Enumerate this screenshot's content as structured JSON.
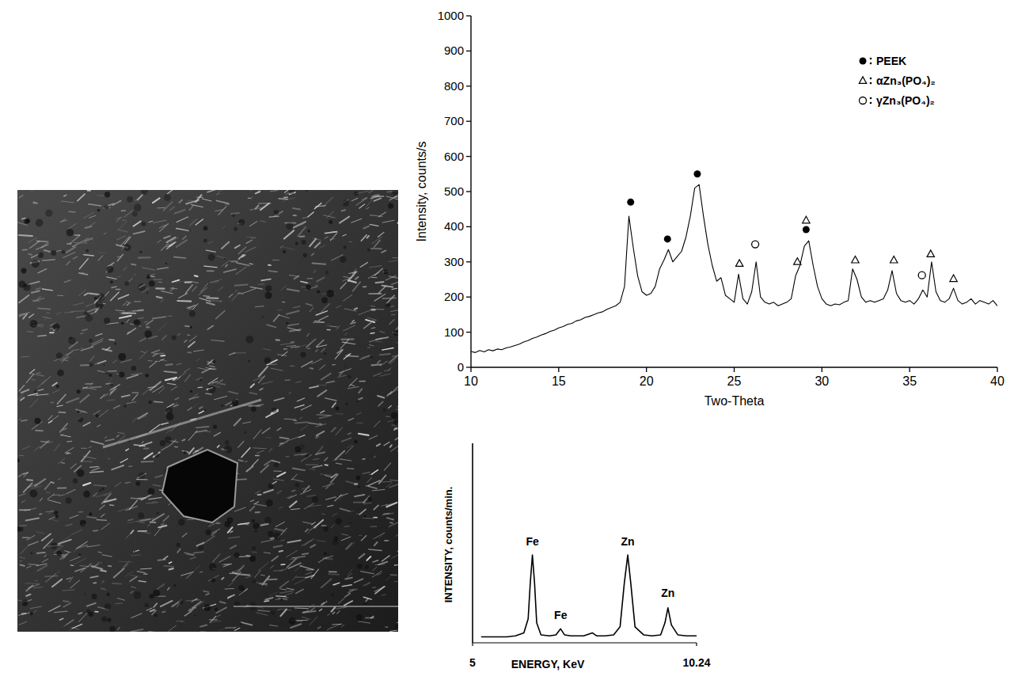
{
  "chart_data": [
    {
      "type": "line",
      "x_label": "Two-Theta",
      "y_label": "Intensity, counts/s",
      "xlim": [
        10,
        40
      ],
      "xticks": [
        10,
        15,
        20,
        25,
        30,
        35,
        40
      ],
      "ylim": [
        0,
        1000
      ],
      "yticks": [
        0,
        100,
        200,
        300,
        400,
        500,
        600,
        700,
        800,
        900,
        1000
      ],
      "legend": "top-right",
      "series": [
        {
          "type": "line",
          "color": "#000000",
          "x": [
            10,
            10.25,
            10.5,
            10.75,
            11,
            11.25,
            11.5,
            11.75,
            12,
            12.25,
            12.5,
            12.75,
            13,
            13.25,
            13.5,
            13.75,
            14,
            14.25,
            14.5,
            14.75,
            15,
            15.25,
            15.5,
            15.75,
            16,
            16.25,
            16.5,
            16.75,
            17,
            17.25,
            17.5,
            17.75,
            18,
            18.25,
            18.5,
            18.75,
            19,
            19.25,
            19.5,
            19.75,
            20,
            20.25,
            20.5,
            20.75,
            21,
            21.25,
            21.5,
            21.75,
            22,
            22.25,
            22.5,
            22.75,
            23,
            23.25,
            23.5,
            23.75,
            24,
            24.25,
            24.5,
            24.75,
            25,
            25.25,
            25.5,
            25.75,
            26,
            26.25,
            26.5,
            26.75,
            27,
            27.25,
            27.5,
            27.75,
            28,
            28.25,
            28.5,
            28.75,
            29,
            29.25,
            29.5,
            29.75,
            30,
            30.25,
            30.5,
            30.75,
            31,
            31.25,
            31.5,
            31.75,
            32,
            32.25,
            32.5,
            32.75,
            33,
            33.25,
            33.5,
            33.75,
            34,
            34.25,
            34.5,
            34.75,
            35,
            35.25,
            35.5,
            35.75,
            36,
            36.25,
            36.5,
            36.75,
            37,
            37.25,
            37.5,
            37.75,
            38,
            38.25,
            38.5,
            38.75,
            39,
            39.25,
            39.5,
            39.75,
            40
          ],
          "values": [
            45,
            42,
            48,
            44,
            50,
            47,
            52,
            50,
            55,
            58,
            62,
            66,
            72,
            76,
            82,
            86,
            92,
            96,
            102,
            106,
            112,
            116,
            122,
            125,
            132,
            135,
            142,
            145,
            150,
            155,
            158,
            165,
            170,
            175,
            185,
            230,
            430,
            340,
            260,
            215,
            205,
            210,
            230,
            280,
            305,
            335,
            300,
            315,
            330,
            370,
            430,
            510,
            520,
            430,
            350,
            290,
            245,
            255,
            205,
            195,
            185,
            265,
            195,
            180,
            215,
            300,
            200,
            185,
            180,
            185,
            175,
            180,
            185,
            195,
            260,
            290,
            345,
            360,
            290,
            230,
            195,
            180,
            175,
            180,
            178,
            185,
            190,
            280,
            250,
            200,
            185,
            190,
            185,
            190,
            195,
            220,
            275,
            210,
            190,
            185,
            190,
            180,
            195,
            220,
            200,
            300,
            215,
            190,
            185,
            195,
            225,
            190,
            180,
            185,
            195,
            180,
            190,
            185,
            180,
            190,
            175
          ]
        },
        {
          "name": "PEEK",
          "type": "scatter",
          "marker": "filled-circle",
          "color": "#000000",
          "x": [
            19.1,
            21.2,
            22.9,
            29.1
          ],
          "values": [
            470,
            365,
            550,
            392
          ]
        },
        {
          "name": "αZn₃(PO₄)₂",
          "type": "scatter",
          "marker": "open-triangle",
          "color": "#000000",
          "x": [
            25.3,
            28.6,
            29.1,
            31.9,
            34.1,
            36.2,
            37.5
          ],
          "values": [
            295,
            300,
            418,
            305,
            305,
            322,
            252
          ]
        },
        {
          "name": "γZn₃(PO₄)₂",
          "type": "scatter",
          "marker": "open-circle",
          "color": "#000000",
          "x": [
            26.2,
            35.7
          ],
          "values": [
            350,
            262
          ]
        }
      ]
    },
    {
      "type": "line",
      "x_label": "ENERGY, KeV",
      "y_label": "INTENSITY, counts/min.",
      "xlim": [
        5,
        10.24
      ],
      "xticks": [
        5,
        10.24
      ],
      "ylim": [
        0,
        100
      ],
      "tick_labels": "x",
      "series": [
        {
          "type": "line",
          "color": "#000000",
          "x": [
            5.2,
            5.5,
            5.8,
            6.0,
            6.2,
            6.3,
            6.35,
            6.4,
            6.45,
            6.5,
            6.6,
            6.8,
            6.95,
            7.06,
            7.15,
            7.3,
            7.6,
            7.8,
            7.9,
            8.1,
            8.3,
            8.45,
            8.55,
            8.63,
            8.7,
            8.8,
            9.0,
            9.2,
            9.4,
            9.5,
            9.57,
            9.65,
            9.8,
            10.0,
            10.24
          ],
          "values": [
            3,
            3,
            3,
            3.5,
            5,
            12,
            30,
            44,
            30,
            10,
            4,
            3.5,
            4,
            7,
            4,
            3.5,
            3.5,
            5,
            3.5,
            3.5,
            4,
            8,
            30,
            44,
            30,
            8,
            4,
            3.5,
            4,
            10,
            17.5,
            9,
            4,
            3.5,
            3.5
          ]
        }
      ],
      "annotations": [
        {
          "text": "Fe",
          "x": 6.4,
          "y": 49
        },
        {
          "text": "Fe",
          "x": 7.06,
          "y": 12
        },
        {
          "text": "Zn",
          "x": 8.63,
          "y": 49
        },
        {
          "text": "Zn",
          "x": 9.57,
          "y": 23
        }
      ]
    }
  ]
}
